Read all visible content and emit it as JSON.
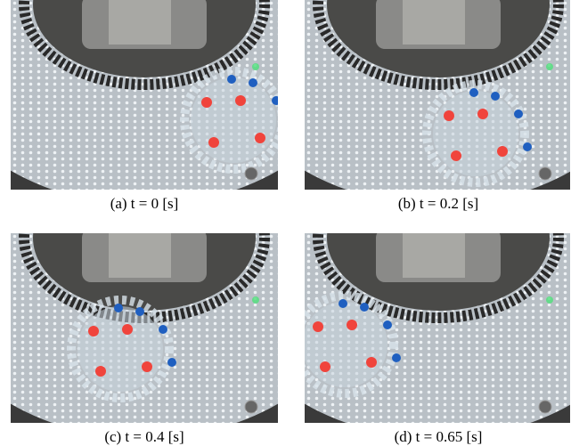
{
  "panels": [
    {
      "caption": "(a) t = 0 [s]"
    },
    {
      "caption": "(b) t = 0.2 [s]"
    },
    {
      "caption": "(c) t = 0.4 [s]"
    },
    {
      "caption": "(d) t = 0.65 [s]"
    }
  ]
}
